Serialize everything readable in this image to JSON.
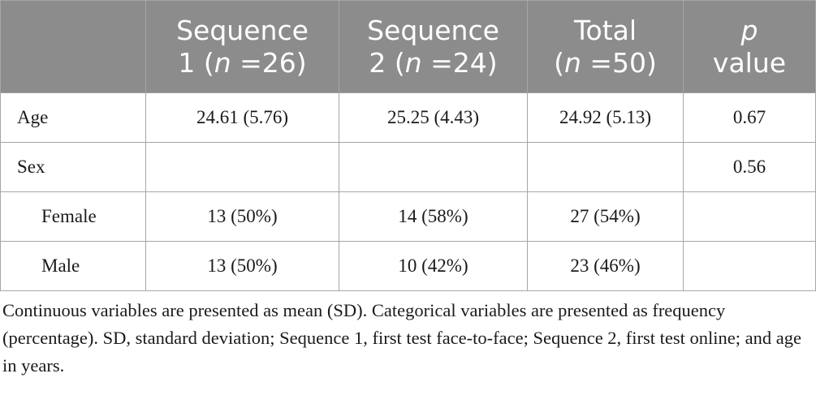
{
  "table": {
    "headers": [
      {
        "line1": "",
        "line2_pre": "",
        "line2_italic": "",
        "line2_post": ""
      },
      {
        "line1": "Sequence",
        "line2_pre": "1 (",
        "line2_italic": "n",
        "line2_post": " =26)"
      },
      {
        "line1": "Sequence",
        "line2_pre": "2 (",
        "line2_italic": "n",
        "line2_post": " =24)"
      },
      {
        "line1": "Total",
        "line2_pre": "(",
        "line2_italic": "n",
        "line2_post": " =50)"
      },
      {
        "line1_italic": "p",
        "line2_pre": "value",
        "line2_italic": "",
        "line2_post": ""
      }
    ],
    "rows": [
      {
        "label": "Age",
        "cells": [
          "24.61 (5.76)",
          "25.25 (4.43)",
          "24.92 (5.13)",
          "0.67"
        ]
      },
      {
        "label": "Sex",
        "cells": [
          "",
          "",
          "",
          "0.56"
        ]
      },
      {
        "label": "Female",
        "cells": [
          "13 (50%)",
          "14 (58%)",
          "27 (54%)",
          ""
        ]
      },
      {
        "label": "Male",
        "cells": [
          "13 (50%)",
          "10 (42%)",
          "23 (46%)",
          ""
        ]
      }
    ]
  },
  "footnote": "Continuous variables are presented as mean (SD). Categorical variables are presented as frequency (percentage). SD, standard deviation; Sequence 1, first test face-to-face; Sequence 2, first test online; and age in years.",
  "colors": {
    "header_bg": "#8c8c8c",
    "header_text": "#ffffff",
    "border": "#a6a6a6",
    "body_text": "#1a1a1a"
  }
}
